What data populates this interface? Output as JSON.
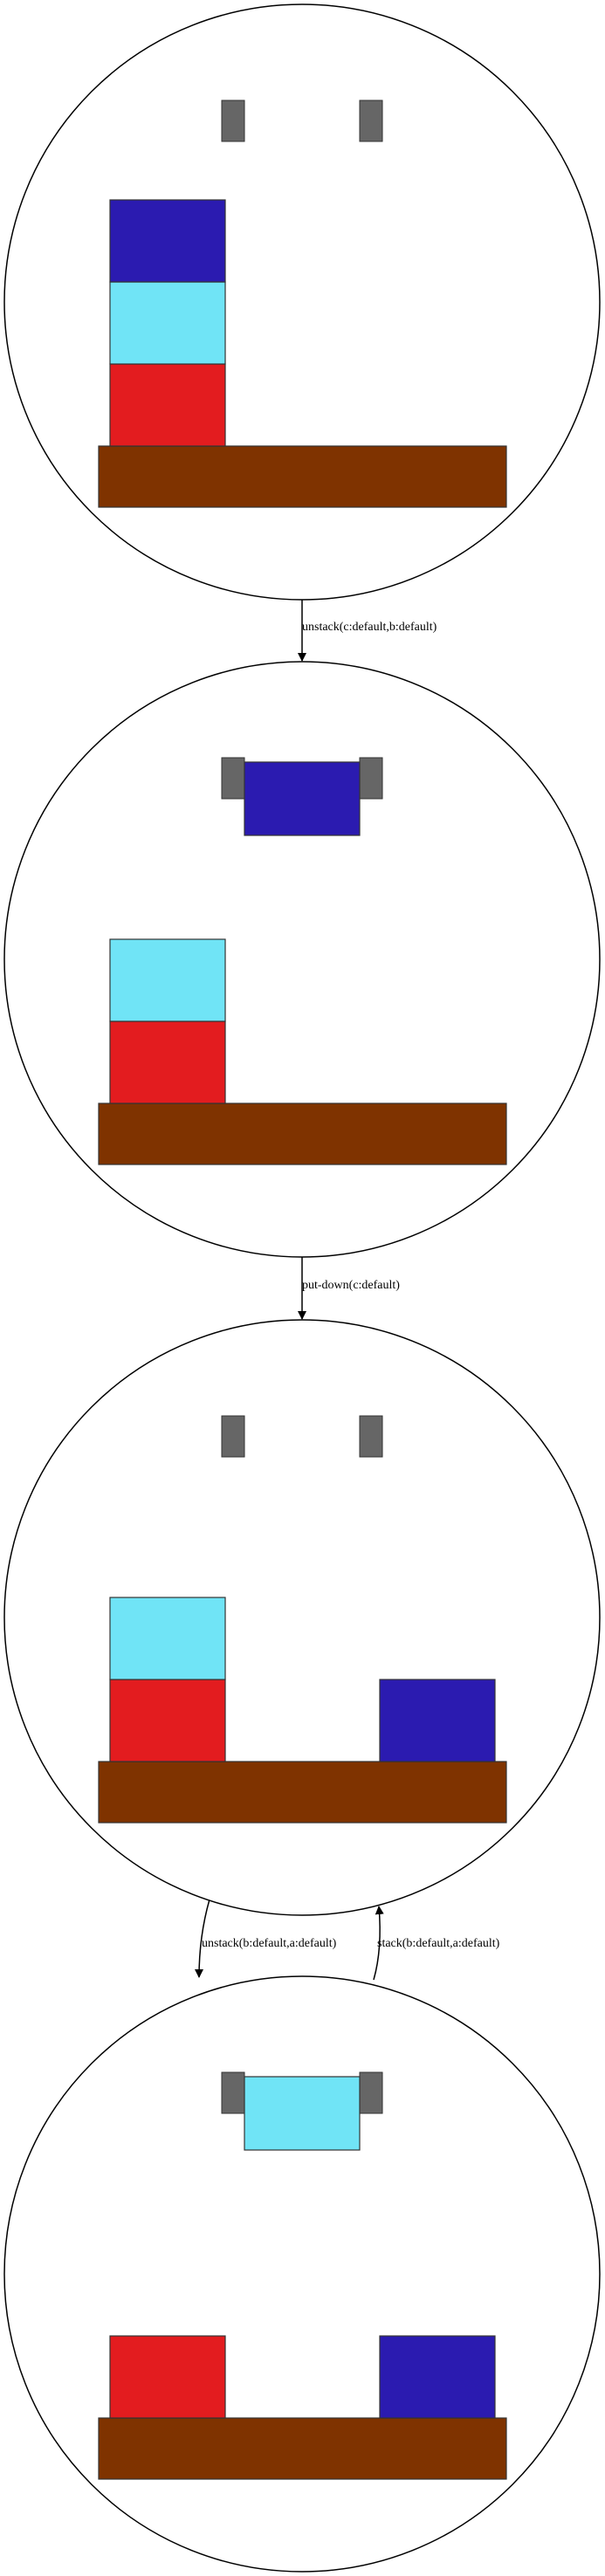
{
  "colors": {
    "table": "#7f3300",
    "gripper": "#666666",
    "blocks": {
      "navy-block": "#2b1bb0",
      "cyan-block": "#70e4f6",
      "red-block": "#e31c1f"
    }
  },
  "states": [
    {
      "id": "state-1",
      "held": null,
      "table_stacks": [
        {
          "slot": "left",
          "blocks": [
            "red-block",
            "cyan-block",
            "navy-block"
          ]
        }
      ]
    },
    {
      "id": "state-2",
      "held": "navy-block",
      "table_stacks": [
        {
          "slot": "left",
          "blocks": [
            "red-block",
            "cyan-block"
          ]
        }
      ]
    },
    {
      "id": "state-3",
      "held": null,
      "table_stacks": [
        {
          "slot": "left",
          "blocks": [
            "red-block",
            "cyan-block"
          ]
        },
        {
          "slot": "right",
          "blocks": [
            "navy-block"
          ]
        }
      ]
    },
    {
      "id": "state-4",
      "held": "cyan-block",
      "table_stacks": [
        {
          "slot": "left",
          "blocks": [
            "red-block"
          ]
        },
        {
          "slot": "right",
          "blocks": [
            "navy-block"
          ]
        }
      ]
    }
  ],
  "transitions": [
    {
      "from": "state-1",
      "to": "state-2",
      "label": "unstack(c:default,b:default)"
    },
    {
      "from": "state-2",
      "to": "state-3",
      "label": "put-down(c:default)"
    },
    {
      "from": "state-3",
      "to": "state-4",
      "label": "unstack(b:default,a:default)"
    },
    {
      "from": "state-4",
      "to": "state-3",
      "label": "stack(b:default,a:default)"
    }
  ]
}
